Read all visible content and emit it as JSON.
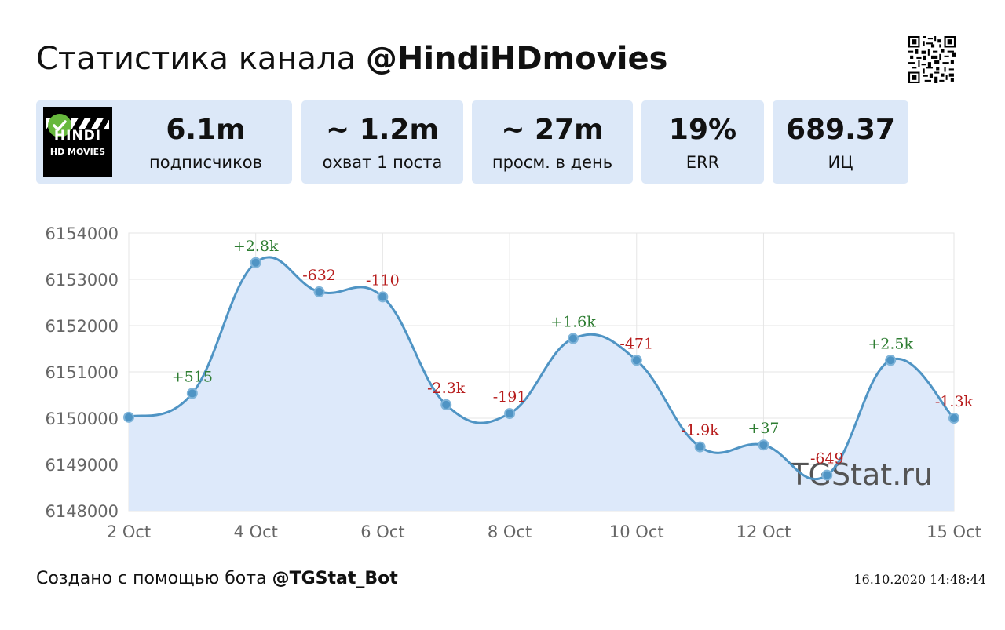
{
  "header": {
    "title_prefix": "Статистика канала ",
    "channel": "@HindiHDmovies"
  },
  "logo": {
    "line1": "HINDI",
    "line2": "HD MOVIES"
  },
  "stats": [
    {
      "value": "6.1m",
      "label": "подписчиков"
    },
    {
      "value": "~ 1.2m",
      "label": "охват 1 поста"
    },
    {
      "value": "~ 27m",
      "label": "просм. в день"
    },
    {
      "value": "19%",
      "label": "ERR"
    },
    {
      "value": "689.37",
      "label": "ИЦ"
    }
  ],
  "watermark": "TGStat.ru",
  "footer": {
    "prefix": "Создано с помощью бота ",
    "bot": "@TGStat_Bot",
    "timestamp": "16.10.2020 14:48:44"
  },
  "colors": {
    "card_bg": "#dce8f8",
    "line": "#4f94c4",
    "area": "#dde9fa",
    "positive": "#2e7d32",
    "negative": "#b71c1c"
  },
  "chart_data": {
    "type": "area",
    "x_ticks": [
      "2 Oct",
      "4 Oct",
      "6 Oct",
      "8 Oct",
      "10 Oct",
      "12 Oct",
      "15 Oct"
    ],
    "x_tick_days": [
      2,
      4,
      6,
      8,
      10,
      12,
      15
    ],
    "y_ticks": [
      6148000,
      6149000,
      6150000,
      6151000,
      6152000,
      6153000,
      6154000
    ],
    "ylim": [
      6148000,
      6154000
    ],
    "xlim": [
      2,
      15
    ],
    "points": [
      {
        "day": 2,
        "value": 6150020,
        "label": ""
      },
      {
        "day": 3,
        "value": 6150535,
        "label": "+515"
      },
      {
        "day": 4,
        "value": 6153360,
        "label": "+2.8k"
      },
      {
        "day": 5,
        "value": 6152730,
        "label": "-632"
      },
      {
        "day": 6,
        "value": 6152620,
        "label": "-110"
      },
      {
        "day": 7,
        "value": 6150290,
        "label": "-2.3k"
      },
      {
        "day": 8,
        "value": 6150100,
        "label": "-191"
      },
      {
        "day": 9,
        "value": 6151720,
        "label": "+1.6k"
      },
      {
        "day": 10,
        "value": 6151250,
        "label": "-471"
      },
      {
        "day": 11,
        "value": 6149380,
        "label": "-1.9k"
      },
      {
        "day": 12,
        "value": 6149420,
        "label": "+37"
      },
      {
        "day": 13,
        "value": 6148770,
        "label": "-649"
      },
      {
        "day": 14,
        "value": 6151250,
        "label": "+2.5k"
      },
      {
        "day": 15,
        "value": 6150000,
        "label": "-1.3k"
      }
    ]
  }
}
